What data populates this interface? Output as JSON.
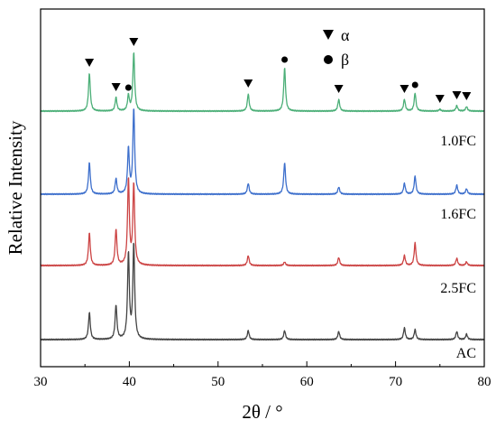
{
  "chart_data": {
    "type": "line",
    "xlabel": "2θ / °",
    "ylabel": "Relative Intensity",
    "xlim": [
      30,
      80
    ],
    "x_ticks": [
      "30",
      "40",
      "50",
      "60",
      "70",
      "80"
    ],
    "y_ticks_shown": false,
    "grid": false,
    "legend": {
      "placement": "top-right",
      "entries": [
        {
          "marker": "down-triangle",
          "label": "α"
        },
        {
          "marker": "circle",
          "label": "β"
        }
      ]
    },
    "series": [
      {
        "name": "AC",
        "color": "#444444",
        "baseline": 0.0,
        "peaks": [
          {
            "x": 35.5,
            "h": 0.3
          },
          {
            "x": 38.5,
            "h": 0.38
          },
          {
            "x": 39.9,
            "h": 0.95
          },
          {
            "x": 40.5,
            "h": 1.05
          },
          {
            "x": 53.4,
            "h": 0.1
          },
          {
            "x": 57.5,
            "h": 0.1
          },
          {
            "x": 63.6,
            "h": 0.09
          },
          {
            "x": 71.0,
            "h": 0.13
          },
          {
            "x": 72.2,
            "h": 0.11
          },
          {
            "x": 76.9,
            "h": 0.09
          },
          {
            "x": 78.0,
            "h": 0.06
          }
        ]
      },
      {
        "name": "2.5FC",
        "color": "#cc4444",
        "baseline": 0.82,
        "peaks": [
          {
            "x": 35.5,
            "h": 0.36
          },
          {
            "x": 38.5,
            "h": 0.4
          },
          {
            "x": 39.9,
            "h": 0.95
          },
          {
            "x": 40.5,
            "h": 0.9
          },
          {
            "x": 53.4,
            "h": 0.11
          },
          {
            "x": 57.5,
            "h": 0.04
          },
          {
            "x": 63.6,
            "h": 0.09
          },
          {
            "x": 71.0,
            "h": 0.11
          },
          {
            "x": 72.2,
            "h": 0.25
          },
          {
            "x": 76.9,
            "h": 0.08
          },
          {
            "x": 78.0,
            "h": 0.04
          }
        ]
      },
      {
        "name": "1.6FC",
        "color": "#3d6fcc",
        "baseline": 1.61,
        "peaks": [
          {
            "x": 35.5,
            "h": 0.35
          },
          {
            "x": 38.5,
            "h": 0.17
          },
          {
            "x": 39.9,
            "h": 0.5
          },
          {
            "x": 40.5,
            "h": 0.95
          },
          {
            "x": 53.4,
            "h": 0.12
          },
          {
            "x": 57.5,
            "h": 0.35
          },
          {
            "x": 63.6,
            "h": 0.08
          },
          {
            "x": 71.0,
            "h": 0.12
          },
          {
            "x": 72.2,
            "h": 0.2
          },
          {
            "x": 76.9,
            "h": 0.1
          },
          {
            "x": 78.0,
            "h": 0.06
          }
        ]
      },
      {
        "name": "1.0FC",
        "color": "#4caf78",
        "baseline": 2.53,
        "peaks": [
          {
            "x": 35.5,
            "h": 0.42
          },
          {
            "x": 38.5,
            "h": 0.15
          },
          {
            "x": 39.9,
            "h": 0.17
          },
          {
            "x": 40.5,
            "h": 0.65
          },
          {
            "x": 53.4,
            "h": 0.19
          },
          {
            "x": 57.5,
            "h": 0.48
          },
          {
            "x": 63.6,
            "h": 0.13
          },
          {
            "x": 71.0,
            "h": 0.13
          },
          {
            "x": 72.2,
            "h": 0.2
          },
          {
            "x": 75.0,
            "h": 0.02
          },
          {
            "x": 76.9,
            "h": 0.06
          },
          {
            "x": 78.0,
            "h": 0.05
          }
        ]
      }
    ],
    "annotations": [
      {
        "marker": "down-triangle",
        "x": 35.5
      },
      {
        "marker": "down-triangle",
        "x": 38.5
      },
      {
        "marker": "circle",
        "x": 39.9
      },
      {
        "marker": "down-triangle",
        "x": 40.5
      },
      {
        "marker": "down-triangle",
        "x": 53.4
      },
      {
        "marker": "circle",
        "x": 57.5
      },
      {
        "marker": "down-triangle",
        "x": 63.6
      },
      {
        "marker": "down-triangle",
        "x": 71.0
      },
      {
        "marker": "circle",
        "x": 72.2
      },
      {
        "marker": "down-triangle",
        "x": 75.0
      },
      {
        "marker": "down-triangle",
        "x": 76.9
      },
      {
        "marker": "down-triangle",
        "x": 78.0
      }
    ]
  }
}
